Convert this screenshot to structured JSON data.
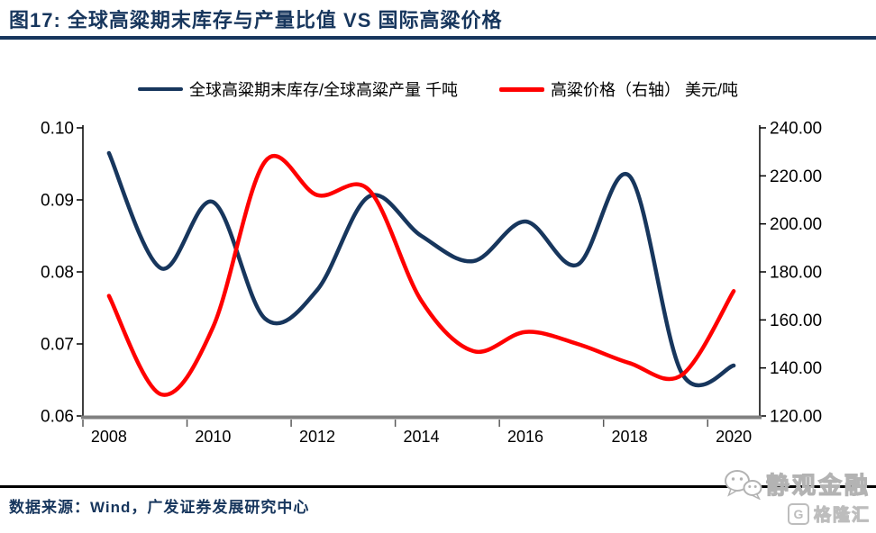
{
  "header": {
    "title": "图17: 全球高粱期末库存与产量比值 VS 国际高粱价格"
  },
  "chart_data": {
    "type": "line",
    "categories": [
      2008,
      2009,
      2010,
      2011,
      2012,
      2013,
      2014,
      2015,
      2016,
      2017,
      2018,
      2019,
      2020
    ],
    "x_axis": {
      "tick_labels": [
        "2008",
        "2010",
        "2012",
        "2014",
        "2016",
        "2018",
        "2020"
      ]
    },
    "left_axis": {
      "min": 0.06,
      "max": 0.1,
      "tick_labels": [
        "0.10",
        "0.09",
        "0.08",
        "0.07",
        "0.06"
      ]
    },
    "right_axis": {
      "min": 120,
      "max": 240,
      "tick_labels": [
        "240.00",
        "220.00",
        "200.00",
        "180.00",
        "160.00",
        "140.00",
        "120.00"
      ]
    },
    "series": [
      {
        "name": "全球高粱期末库存/全球高粱产量 千吨",
        "axis": "left",
        "color": "#17365D",
        "values": [
          0.0965,
          0.0805,
          0.0897,
          0.0735,
          0.0775,
          0.0905,
          0.085,
          0.0815,
          0.087,
          0.081,
          0.0933,
          0.066,
          0.067
        ]
      },
      {
        "name": "高粱价格（右轴） 美元/吨",
        "axis": "right",
        "color": "#FF0000",
        "values": [
          170,
          129,
          157,
          226,
          212,
          214,
          168,
          147,
          155,
          150,
          142,
          137,
          172
        ]
      }
    ],
    "grid": false,
    "legend_position": "top",
    "title": "图17: 全球高粱期末库存与产量比值 VS 国际高粱价格"
  },
  "footer": {
    "source": "数据来源：Wind，广发证券发展研究中心"
  },
  "watermark": {
    "wechat_text": "静观金融",
    "logo_letter": "G",
    "logo_text": "格隆汇"
  },
  "colors": {
    "navy": "#17365D",
    "red": "#FF0000",
    "axis_gray": "#808080",
    "tick_gray": "#595959",
    "divider_black": "#000000"
  }
}
